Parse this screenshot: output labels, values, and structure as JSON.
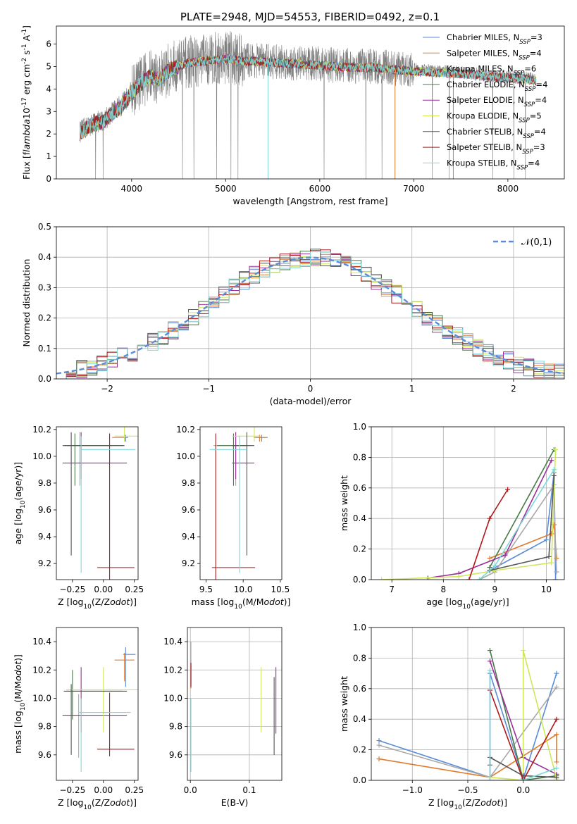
{
  "figure_title": "PLATE=2948, MJD=54553, FIBERID=0492, z=0.1",
  "models": [
    {
      "name": "Chabrier MILES",
      "nssp": "3",
      "color": "#5b8bd9"
    },
    {
      "name": "Salpeter MILES",
      "nssp": "4",
      "color": "#e07a2c"
    },
    {
      "name": "Kroupa MILES",
      "nssp": "6",
      "color": "#a9a9a9"
    },
    {
      "name": "Chabrier ELODIE",
      "nssp": "4",
      "color": "#4a7a4a"
    },
    {
      "name": "Salpeter ELODIE",
      "nssp": "4",
      "color": "#9b2f9b"
    },
    {
      "name": "Kroupa ELODIE",
      "nssp": "5",
      "color": "#cfe85a"
    },
    {
      "name": "Chabrier STELIB",
      "nssp": "4",
      "color": "#555555"
    },
    {
      "name": "Salpeter STELIB",
      "nssp": "3",
      "color": "#b01818"
    },
    {
      "name": "Kroupa STELIB",
      "nssp": "4",
      "color": "#7fd8d8"
    }
  ],
  "chart_data": [
    {
      "id": "spectrum",
      "type": "line",
      "xlabel": "wavelength [Angstrom, rest frame]",
      "ylabel": "Flux [f$_\\lambda$10$^{-17}$ erg cm$^{-2}$ s$^{-1}$ A$^{-1}$]",
      "xlim": [
        3200,
        8600
      ],
      "ylim": [
        0,
        6.8
      ],
      "xticks": [
        4000,
        5000,
        6000,
        7000,
        8000
      ],
      "yticks": [
        0,
        1,
        2,
        3,
        4,
        5,
        6
      ],
      "data_color": "#7f7f7f",
      "continuum": {
        "x": [
          3450,
          3600,
          3700,
          3800,
          3900,
          4000,
          4100,
          4200,
          4300,
          4400,
          4600,
          4800,
          5000,
          5200,
          5400,
          5600,
          5800,
          6000,
          6200,
          6400,
          6600,
          6800,
          7000,
          7200,
          7400,
          7600,
          7800,
          8000,
          8200,
          8300
        ],
        "y": [
          2.1,
          2.5,
          2.6,
          3.0,
          3.3,
          3.9,
          4.3,
          4.6,
          4.5,
          4.9,
          5.2,
          5.3,
          5.4,
          5.3,
          5.25,
          5.2,
          5.15,
          5.1,
          5.05,
          5.0,
          5.0,
          4.9,
          4.85,
          4.8,
          4.75,
          4.7,
          4.6,
          4.55,
          4.5,
          4.4
        ]
      },
      "notes": "observed spectrum (grey) with nine overlapping model fits"
    },
    {
      "id": "residuals",
      "type": "bar",
      "xlabel": "(data-model)/error",
      "ylabel": "Normed distribution",
      "xlim": [
        -2.5,
        2.5
      ],
      "ylim": [
        0,
        0.5
      ],
      "xticks": [
        -2,
        -1,
        0,
        1,
        2
      ],
      "yticks": [
        0.0,
        0.1,
        0.2,
        0.3,
        0.4,
        0.5
      ],
      "bin_width": 0.1,
      "reference": {
        "label": "$\\mathcal{N}(0,1)$",
        "color": "#5b8bd9",
        "style": "dashed"
      },
      "legend_position": "upper right"
    },
    {
      "id": "age_vs_Z",
      "type": "scatter",
      "xlabel": "Z [log$_{10}$(Z/Z$_\\odot$)]",
      "ylabel": "age  [log$_{10}$(age/yr)]",
      "xlim": [
        -0.38,
        0.28
      ],
      "ylim": [
        9.08,
        10.22
      ],
      "xticks": [
        -0.25,
        0.0,
        0.25
      ],
      "yticks": [
        9.2,
        9.4,
        9.6,
        9.8,
        10.0,
        10.2
      ],
      "points": [
        {
          "model": 0,
          "x": 0.18,
          "y": 10.14,
          "x_err": [
            0.0,
            0.02
          ],
          "y_err": [
            0.03,
            0.02
          ]
        },
        {
          "model": 1,
          "x": 0.17,
          "y": 10.14,
          "x_err": [
            0.1,
            0.02
          ],
          "y_err": [
            0.03,
            0.02
          ]
        },
        {
          "model": 2,
          "x": -0.19,
          "y": 10.08,
          "x_err": [
            0.1,
            0.25
          ],
          "y_err": [
            0.3,
            0.1
          ]
        },
        {
          "model": 3,
          "x": -0.23,
          "y": 10.08,
          "x_err": [
            0.1,
            0.39
          ],
          "y_err": [
            0.3,
            0.09
          ]
        },
        {
          "model": 4,
          "x": -0.18,
          "y": 9.95,
          "x_err": [
            0.15,
            0.37
          ],
          "y_err": [
            0.12,
            0.23
          ]
        },
        {
          "model": 5,
          "x": 0.17,
          "y": 10.15,
          "x_err": [
            0.08,
            0.3
          ],
          "y_err": [
            0.04,
            0.08
          ]
        },
        {
          "model": 6,
          "x": -0.26,
          "y": 10.08,
          "x_err": [
            0.06,
            0.43
          ],
          "y_err": [
            0.82,
            0.1
          ]
        },
        {
          "model": 7,
          "x": 0.05,
          "y": 9.17,
          "x_err": [
            0.1,
            0.2
          ],
          "y_err": [
            0.15,
            1.0
          ]
        },
        {
          "model": 8,
          "x": -0.18,
          "y": 10.05,
          "x_err": [
            0.0,
            0.44
          ],
          "y_err": [
            0.92,
            0.1
          ]
        }
      ]
    },
    {
      "id": "age_vs_mass",
      "type": "scatter",
      "xlabel": "mass [log$_{10}$(M/M$_\\odot$)]",
      "ylabel": "",
      "xlim": [
        9.42,
        10.52
      ],
      "ylim": [
        9.08,
        10.22
      ],
      "xticks": [
        9.5,
        10.0,
        10.5
      ],
      "yticks": [
        9.2,
        9.4,
        9.6,
        9.8,
        10.0,
        10.2
      ],
      "points": [
        {
          "model": 0,
          "x": 10.25,
          "y": 10.14,
          "x_err": [
            0.08,
            0.08
          ],
          "y_err": [
            0.03,
            0.02
          ]
        },
        {
          "model": 1,
          "x": 10.22,
          "y": 10.14,
          "x_err": [
            0.08,
            0.08
          ],
          "y_err": [
            0.03,
            0.02
          ]
        },
        {
          "model": 2,
          "x": 9.9,
          "y": 10.08,
          "x_err": [
            0.3,
            0.2
          ],
          "y_err": [
            0.3,
            0.1
          ]
        },
        {
          "model": 3,
          "x": 9.87,
          "y": 10.08,
          "x_err": [
            0.22,
            0.19
          ],
          "y_err": [
            0.3,
            0.09
          ]
        },
        {
          "model": 4,
          "x": 9.9,
          "y": 9.95,
          "x_err": [
            0.05,
            0.25
          ],
          "y_err": [
            0.12,
            0.23
          ]
        },
        {
          "model": 5,
          "x": 10.15,
          "y": 10.15,
          "x_err": [
            0.3,
            0.1
          ],
          "y_err": [
            0.04,
            0.08
          ]
        },
        {
          "model": 6,
          "x": 10.05,
          "y": 10.08,
          "x_err": [
            0.2,
            0.1
          ],
          "y_err": [
            0.82,
            0.1
          ]
        },
        {
          "model": 7,
          "x": 9.63,
          "y": 9.17,
          "x_err": [
            0.05,
            0.53
          ],
          "y_err": [
            0.15,
            1.0
          ]
        },
        {
          "model": 8,
          "x": 9.95,
          "y": 10.05,
          "x_err": [
            0.4,
            0.1
          ],
          "y_err": [
            0.92,
            0.1
          ]
        }
      ]
    },
    {
      "id": "mass_weight_vs_age",
      "type": "line",
      "xlabel": "age  [log$_{10}$(age/yr)]",
      "ylabel": "mass weight",
      "xlim": [
        6.6,
        10.35
      ],
      "ylim": [
        0,
        1.0
      ],
      "xticks": [
        7,
        8,
        9,
        10
      ],
      "yticks": [
        0.0,
        0.2,
        0.4,
        0.6,
        0.8,
        1.0
      ],
      "series": [
        {
          "model": 0,
          "x": [
            8.9,
            10.0,
            10.15,
            10.18
          ],
          "y": [
            0.06,
            0.26,
            0.7,
            0.0
          ]
        },
        {
          "model": 1,
          "x": [
            8.9,
            10.1,
            10.15,
            10.2
          ],
          "y": [
            0.14,
            0.3,
            0.36,
            0.14
          ]
        },
        {
          "model": 2,
          "x": [
            8.7,
            9.0,
            10.15,
            10.18,
            10.2
          ],
          "y": [
            0.0,
            0.05,
            0.62,
            0.2,
            0.05
          ]
        },
        {
          "model": 3,
          "x": [
            8.9,
            10.15
          ],
          "y": [
            0.08,
            0.85
          ]
        },
        {
          "model": 4,
          "x": [
            7.7,
            8.3,
            9.2,
            10.1
          ],
          "y": [
            0.01,
            0.04,
            0.16,
            0.78
          ]
        },
        {
          "model": 5,
          "x": [
            6.8,
            8.3,
            9.0,
            10.1,
            10.18
          ],
          "y": [
            0.0,
            0.02,
            0.06,
            0.11,
            0.85
          ]
        },
        {
          "model": 6,
          "x": [
            8.9,
            10.05,
            10.15
          ],
          "y": [
            0.06,
            0.15,
            0.68
          ]
        },
        {
          "model": 7,
          "x": [
            8.5,
            8.9,
            9.25
          ],
          "y": [
            0.0,
            0.4,
            0.59
          ]
        },
        {
          "model": 8,
          "x": [
            8.7,
            9.0,
            10.15
          ],
          "y": [
            0.0,
            0.09,
            0.72
          ]
        }
      ]
    },
    {
      "id": "mass_vs_Z",
      "type": "scatter",
      "xlabel": "Z [log$_{10}$(Z/Z$_\\odot$)]",
      "ylabel": "mass [log$_{10}$(M/M$_\\odot$)]",
      "xlim": [
        -0.38,
        0.28
      ],
      "ylim": [
        9.42,
        10.5
      ],
      "xticks": [
        -0.25,
        0.0,
        0.25
      ],
      "yticks": [
        9.6,
        9.8,
        10.0,
        10.2,
        10.4
      ],
      "points": [
        {
          "model": 0,
          "x": 0.18,
          "y": 10.31,
          "x_err": [
            0.02,
            0.08
          ],
          "y_err": [
            0.23,
            0.05
          ]
        },
        {
          "model": 1,
          "x": 0.17,
          "y": 10.27,
          "x_err": [
            0.08,
            0.08
          ],
          "y_err": [
            0.15,
            0.05
          ]
        },
        {
          "model": 2,
          "x": -0.2,
          "y": 9.88,
          "x_err": [
            0.1,
            0.2
          ],
          "y_err": [
            0.3,
            0.15
          ]
        },
        {
          "model": 3,
          "x": -0.25,
          "y": 10.05,
          "x_err": [
            0.05,
            0.4
          ],
          "y_err": [
            0.2,
            0.15
          ]
        },
        {
          "model": 4,
          "x": -0.18,
          "y": 9.88,
          "x_err": [
            0.15,
            0.37
          ],
          "y_err": [
            0.12,
            0.34
          ]
        },
        {
          "model": 5,
          "x": 0.0,
          "y": 10.06,
          "x_err": [
            0.3,
            0.3
          ],
          "y_err": [
            0.3,
            0.16
          ]
        },
        {
          "model": 6,
          "x": -0.26,
          "y": 10.05,
          "x_err": [
            0.06,
            0.45
          ],
          "y_err": [
            0.45,
            0.05
          ]
        },
        {
          "model": 7,
          "x": 0.05,
          "y": 9.64,
          "x_err": [
            0.1,
            0.2
          ],
          "y_err": [
            0.05,
            0.4
          ]
        },
        {
          "model": 8,
          "x": -0.18,
          "y": 9.9,
          "x_err": [
            0.02,
            0.4
          ],
          "y_err": [
            0.42,
            0.1
          ]
        }
      ]
    },
    {
      "id": "mass_vs_ebv",
      "type": "scatter",
      "xlabel": "E(B-V)",
      "ylabel": "",
      "xlim": [
        -0.005,
        0.155
      ],
      "ylim": [
        9.42,
        10.5
      ],
      "xticks": [
        0.0,
        0.1
      ],
      "yticks": [
        9.6,
        9.8,
        10.0,
        10.2,
        10.4
      ],
      "points": [
        {
          "model": 1,
          "x": 0.001,
          "y": 10.22,
          "y_err": [
            0.15,
            0.05
          ]
        },
        {
          "model": 2,
          "x": 0.001,
          "y": 10.3,
          "y_err": [
            0.2,
            0.1
          ]
        },
        {
          "model": 7,
          "x": 0.001,
          "y": 10.2,
          "y_err": [
            0.12,
            0.05
          ]
        },
        {
          "model": 5,
          "x": 0.12,
          "y": 10.06,
          "y_err": [
            0.3,
            0.16
          ]
        },
        {
          "model": 6,
          "x": 0.142,
          "y": 9.95,
          "y_err": [
            0.35,
            0.2
          ]
        },
        {
          "model": 4,
          "x": 0.145,
          "y": 9.95,
          "y_err": [
            0.2,
            0.27
          ]
        },
        {
          "model": 8,
          "x": 0.001,
          "y": 9.9,
          "y_err": [
            0.42,
            0.1
          ]
        }
      ]
    },
    {
      "id": "mass_weight_vs_Z",
      "type": "line",
      "xlabel": "Z [log$_{10}$(Z/Z$_\\odot$)]",
      "ylabel": "mass weight",
      "xlim": [
        -1.37,
        0.37
      ],
      "ylim": [
        0,
        1.0
      ],
      "xticks": [
        -1.0,
        -0.5,
        0.0
      ],
      "yticks": [
        0.0,
        0.2,
        0.4,
        0.6,
        0.8,
        1.0
      ],
      "series": [
        {
          "model": 0,
          "x": [
            -1.3,
            -0.3,
            -0.3,
            0.0,
            0.3
          ],
          "y": [
            0.26,
            0.02,
            0.7,
            0.01,
            0.7
          ]
        },
        {
          "model": 1,
          "x": [
            -1.3,
            -0.3,
            0.3,
            0.3
          ],
          "y": [
            0.14,
            0.02,
            0.3,
            0.12
          ]
        },
        {
          "model": 2,
          "x": [
            -1.3,
            -0.3,
            0.3
          ],
          "y": [
            0.23,
            0.02,
            0.61
          ]
        },
        {
          "model": 3,
          "x": [
            -0.3,
            0.0,
            0.3
          ],
          "y": [
            0.85,
            0.0,
            0.03
          ]
        },
        {
          "model": 4,
          "x": [
            -0.3,
            0.0,
            0.3
          ],
          "y": [
            0.78,
            0.15,
            0.04
          ]
        },
        {
          "model": 5,
          "x": [
            -0.3,
            0.0,
            0.0,
            0.3
          ],
          "y": [
            0.02,
            0.0,
            0.85,
            0.01
          ]
        },
        {
          "model": 6,
          "x": [
            -0.3,
            -0.3,
            0.0,
            0.3
          ],
          "y": [
            0.1,
            0.15,
            0.03,
            0.02
          ]
        },
        {
          "model": 7,
          "x": [
            -0.3,
            0.0,
            0.3
          ],
          "y": [
            0.59,
            0.0,
            0.4
          ]
        },
        {
          "model": 8,
          "x": [
            -0.3,
            -0.3,
            0.0,
            0.3
          ],
          "y": [
            0.72,
            0.0,
            0.0,
            0.08
          ]
        }
      ]
    }
  ]
}
